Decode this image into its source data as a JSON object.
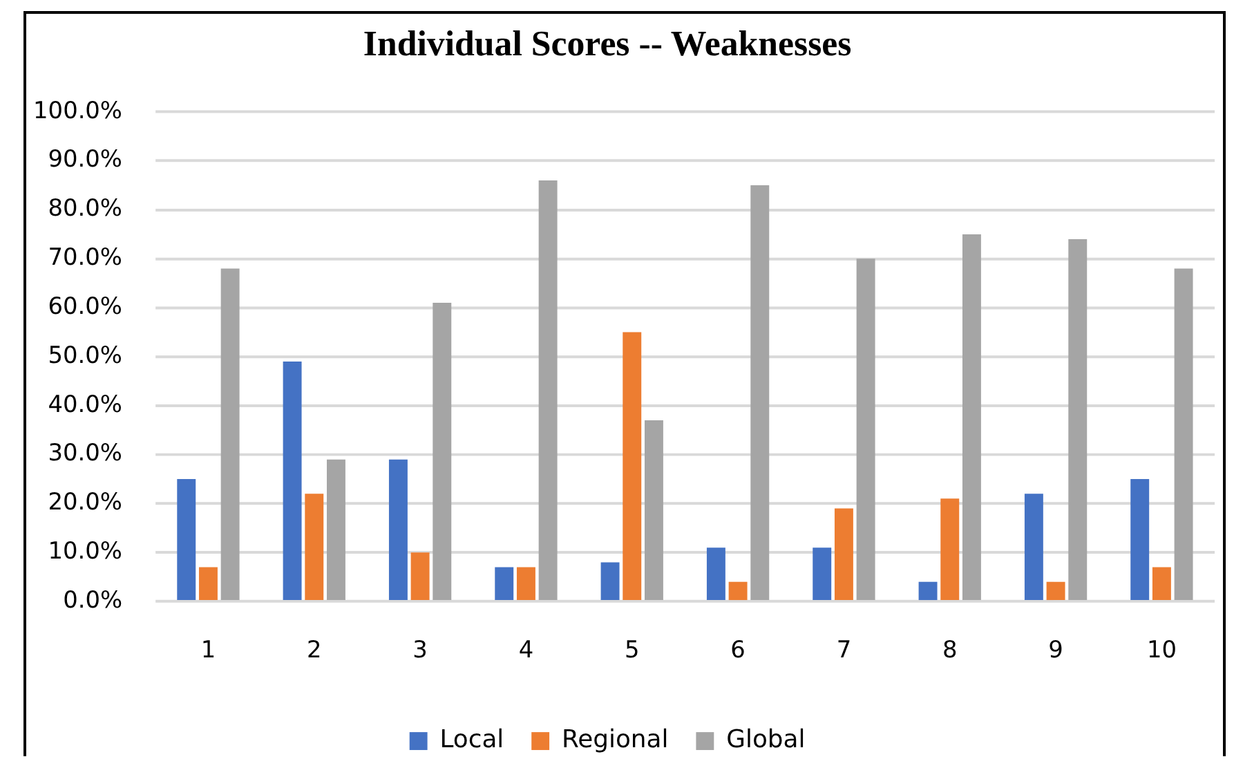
{
  "chart_data": {
    "type": "bar",
    "title": "Individual Scores -- Weaknesses",
    "categories": [
      "1",
      "2",
      "3",
      "4",
      "5",
      "6",
      "7",
      "8",
      "9",
      "10"
    ],
    "series": [
      {
        "name": "Local",
        "color": "#4472c4",
        "values": [
          25,
          49,
          29,
          7,
          8,
          11,
          11,
          4,
          22,
          25
        ]
      },
      {
        "name": "Regional",
        "color": "#ed7d31",
        "values": [
          7,
          22,
          10,
          7,
          55,
          4,
          19,
          21,
          4,
          7
        ]
      },
      {
        "name": "Global",
        "color": "#a5a5a5",
        "values": [
          68,
          29,
          61,
          86,
          37,
          85,
          70,
          75,
          74,
          68
        ]
      }
    ],
    "ylim": [
      0,
      100
    ],
    "yticks": [
      {
        "value": 0,
        "label": "0.0%"
      },
      {
        "value": 10,
        "label": "10.0%"
      },
      {
        "value": 20,
        "label": "20.0%"
      },
      {
        "value": 30,
        "label": "30.0%"
      },
      {
        "value": 40,
        "label": "40.0%"
      },
      {
        "value": 50,
        "label": "50.0%"
      },
      {
        "value": 60,
        "label": "60.0%"
      },
      {
        "value": 70,
        "label": "70.0%"
      },
      {
        "value": 80,
        "label": "80.0%"
      },
      {
        "value": 90,
        "label": "90.0%"
      },
      {
        "value": 100,
        "label": "100.0%"
      }
    ],
    "grid": "y",
    "legend": "bottom"
  }
}
